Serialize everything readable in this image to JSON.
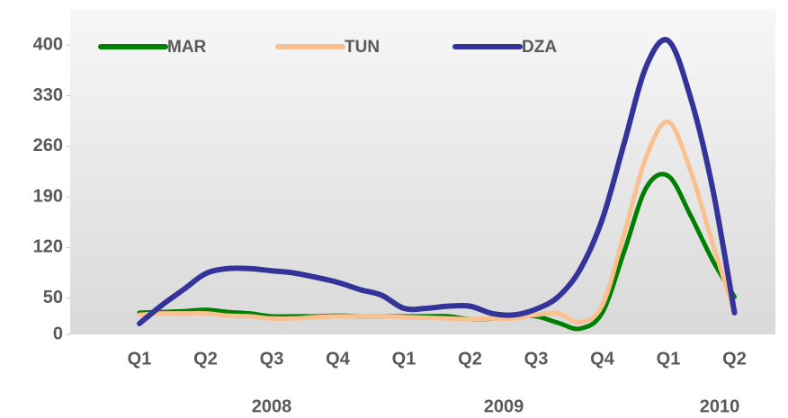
{
  "chart_data": {
    "type": "line",
    "categories": [
      "Q1",
      null,
      null,
      "Q2",
      null,
      null,
      "Q3",
      null,
      null,
      "Q4",
      null,
      null,
      "Q1",
      null,
      null,
      "Q2",
      null,
      null,
      "Q3",
      null,
      null,
      "Q4",
      null,
      null,
      "Q1",
      null,
      null,
      "Q2"
    ],
    "year_labels": [
      "2008",
      "2009",
      "2010"
    ],
    "series": [
      {
        "name": "MAR",
        "color": "#008000",
        "values": [
          30,
          31,
          32,
          34,
          31,
          29,
          25,
          25,
          25,
          26,
          25,
          25,
          25,
          25,
          25,
          21,
          22,
          25,
          25,
          16,
          8,
          30,
          115,
          203,
          219,
          165,
          103,
          52
        ]
      },
      {
        "name": "TUN",
        "color": "#fac090",
        "values": [
          27,
          29,
          29,
          29,
          26,
          25,
          22,
          22,
          24,
          25,
          25,
          25,
          24,
          23,
          22,
          21,
          22,
          22,
          27,
          29,
          17,
          40,
          140,
          246,
          294,
          227,
          127,
          31
        ]
      },
      {
        "name": "DZA",
        "color": "#333399",
        "values": [
          15,
          40,
          62,
          84,
          91,
          91,
          88,
          85,
          79,
          72,
          62,
          54,
          36,
          36,
          39,
          39,
          29,
          27,
          35,
          52,
          90,
          159,
          265,
          371,
          406,
          328,
          203,
          30
        ]
      }
    ],
    "ylim": [
      0,
      450
    ],
    "yticks": [
      0,
      50,
      120,
      190,
      260,
      330,
      400
    ],
    "legend": "top-left"
  }
}
